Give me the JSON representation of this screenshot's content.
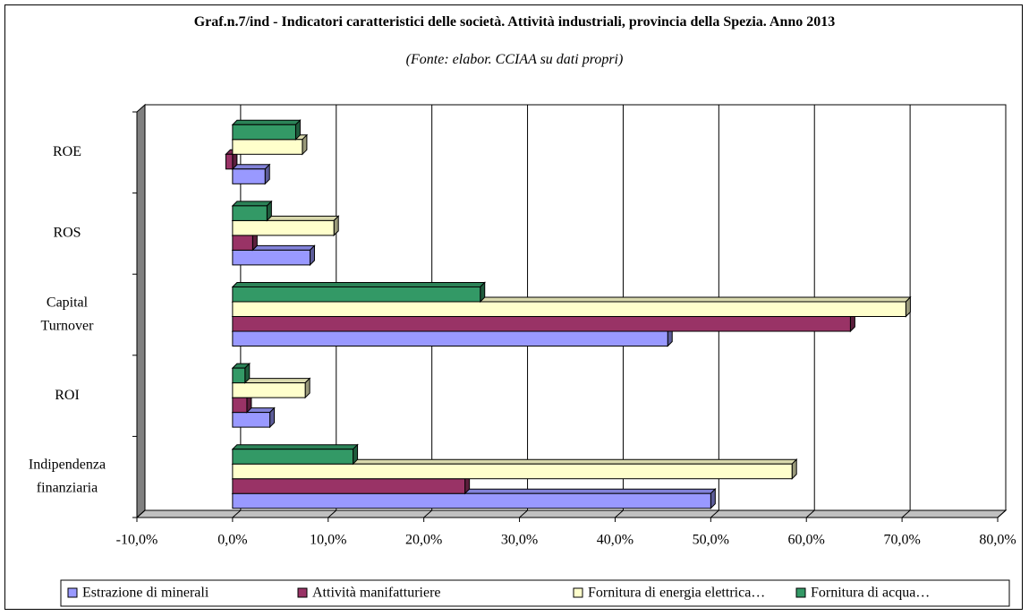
{
  "chart_data": {
    "type": "bar",
    "orientation": "horizontal",
    "title": "Graf.n.7/ind - Indicatori caratteristici delle società. Attività industriali,  provincia della Spezia. Anno 2013",
    "subtitle": "(Fonte: elabor. CCIAA su dati propri)",
    "categories": [
      "Indipendenza finanziaria",
      "ROI",
      "Capital Turnover",
      "ROS",
      "ROE"
    ],
    "series": [
      {
        "name": "Estrazione di minerali",
        "color": "#9999ff",
        "values": [
          50.0,
          3.9,
          45.5,
          8.1,
          3.4
        ]
      },
      {
        "name": "Attività manifatturiere",
        "color": "#993366",
        "values": [
          24.3,
          1.5,
          64.6,
          2.1,
          -0.7
        ]
      },
      {
        "name": "Fornitura di energia elettrica…",
        "color": "#ffffcc",
        "values": [
          58.5,
          7.6,
          70.4,
          10.6,
          7.3
        ]
      },
      {
        "name": "Fornitura di acqua…",
        "color": "#339966",
        "values": [
          12.6,
          1.3,
          25.9,
          3.6,
          6.6
        ]
      }
    ],
    "xlim": [
      -10,
      80
    ],
    "xticks": [
      {
        "value": -10,
        "label": "-10,0%"
      },
      {
        "value": 0,
        "label": "0,0%"
      },
      {
        "value": 10,
        "label": "10,0%"
      },
      {
        "value": 20,
        "label": "20,0%"
      },
      {
        "value": 30,
        "label": "30,0%"
      },
      {
        "value": 40,
        "label": "40,0%"
      },
      {
        "value": 50,
        "label": "50,0%"
      },
      {
        "value": 60,
        "label": "60,0%"
      },
      {
        "value": 70,
        "label": "70,0%"
      },
      {
        "value": 80,
        "label": "80,0%"
      }
    ],
    "grid": true,
    "legend": "bottom"
  }
}
